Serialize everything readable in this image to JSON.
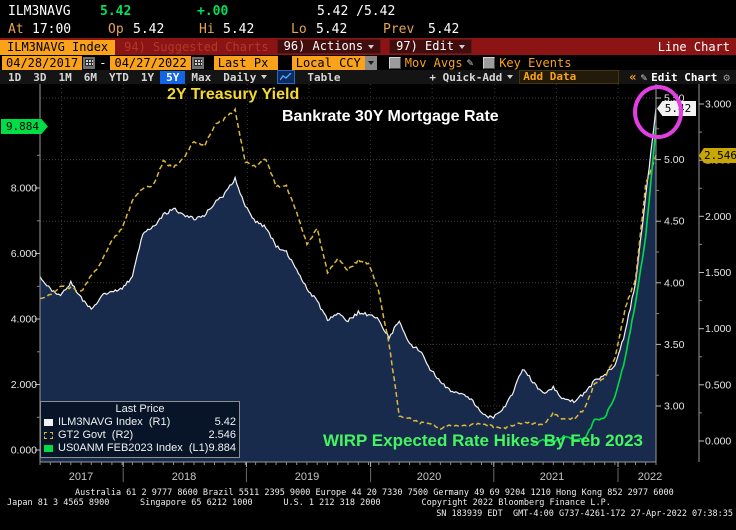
{
  "quote": {
    "ticker": "ILM3NAVG",
    "last": "5.42",
    "change": "+.00",
    "bid_ask": "5.42 /5.42",
    "at_label": "At",
    "at_time": "17:00",
    "op_label": "Op",
    "op_value": "5.42",
    "hi_label": "Hi",
    "hi_value": "5.42",
    "lo_label": "Lo",
    "lo_value": "5.42",
    "prev_label": "Prev",
    "prev_value": "5.42"
  },
  "titlebar": {
    "security": "ILM3NAVG Index",
    "suggested_charts": "94) Suggested Charts",
    "actions": "96) Actions",
    "edit": "97) Edit",
    "chart_type": "Line Chart"
  },
  "controls": {
    "date_from": "04/28/2017",
    "date_to": "04/27/2022",
    "px_type": "Last Px",
    "currency": "Local CCY",
    "mov_avgs": "Mov Avgs",
    "key_events": "Key Events"
  },
  "toolbar": {
    "periods": [
      "1D",
      "3D",
      "1M",
      "6M",
      "YTD",
      "1Y",
      "5Y",
      "Max"
    ],
    "selected_period": "5Y",
    "frequency": "Daily",
    "table_label": "Table",
    "quick_add": "+ Quick-Add",
    "add_data_placeholder": "Add Data",
    "edit_chart": "Edit Chart"
  },
  "icons": {
    "collapse": "«",
    "pencil": "✎",
    "gear": "⚙"
  },
  "annotations": {
    "yellow_label": "2Y Treasury Yield",
    "white_label": "Bankrate 30Y Mortgage Rate",
    "green_label": "WIRP Expected Rate Hikes By Feb 2023"
  },
  "legend": {
    "header": "Last Price",
    "rows": [
      {
        "swatch": "white-solid",
        "label": "ILM3NAVG Index  (R1)",
        "value": "5.42"
      },
      {
        "swatch": "yellow-dashed",
        "label": "GT2 Govt  (R2)",
        "value": "2.546"
      },
      {
        "swatch": "green-solid",
        "label": "US0ANM FEB2023 Index  (L1)",
        "value": "9.884"
      }
    ]
  },
  "badges": {
    "left_green": "9.884",
    "right_white": "5.42",
    "right_amber": "2.546"
  },
  "footer": {
    "line1": "Australia 61 2 9777 8600 Brazil 5511 2395 9000 Europe 44 20 7330 7500 Germany 49 69 9204 1210 Hong Kong 852 2977 6000",
    "line2": "Japan 81 3 4565 8900      Singapore 65 6212 1000      U.S. 1 212 318 2000        Copyright 2022 Bloomberg Finance L.P.",
    "line3": "SN 183939 EDT  GMT-4:00 G737-4261-172 27-Apr-2022 07:38:35"
  },
  "colors": {
    "amber": "#f9a21a",
    "quote_green": "#00e05c",
    "red_bar": "#8d1414",
    "blue_selected": "#1464e6",
    "series_white": "#f2f2f2",
    "series_white_fill": "#182b4d",
    "series_yellow": "#dcb73a",
    "series_green": "#00dc46",
    "magenta_circle": "#e13fe1",
    "badge_green_bg": "#00dc46",
    "badge_amber_bg": "#c9a702"
  },
  "chart_data": {
    "type": "line",
    "title": "ILM3NAVG Index Line Chart (5Y, Daily)",
    "x_start": "2017-04",
    "x_end": "2022-04",
    "x_year_labels": [
      "2017",
      "2018",
      "2019",
      "2020",
      "2021",
      "2022"
    ],
    "legend_position": "bottom-left",
    "grid": true,
    "axes": {
      "left_L1": {
        "tick_values": [
          8,
          6,
          4,
          2,
          0
        ],
        "tick_labels": [
          "8.000",
          "6.000",
          "4.000",
          "2.000",
          "0.000"
        ],
        "range": [
          0,
          11.5
        ]
      },
      "right_R1": {
        "tick_values": [
          5.5,
          5.0,
          4.5,
          4.0,
          3.5,
          3.0
        ],
        "tick_labels": [
          "5.50",
          "5.00",
          "4.50",
          "4.00",
          "3.50",
          "3.00"
        ],
        "range": [
          2.9,
          5.62
        ]
      },
      "right_R2": {
        "tick_values": [
          3.0,
          2.5,
          2.0,
          1.5,
          1.0,
          0.5,
          0.0
        ],
        "tick_labels": [
          "3.000",
          "2.500",
          "2.000",
          "1.500",
          "1.000",
          "0.500",
          "0.000"
        ],
        "range": [
          -0.35,
          3.18
        ]
      }
    },
    "series": [
      {
        "name": "ILM3NAVG Index (R1) - Bankrate 30Y Mortgage Rate",
        "axis": "R1",
        "style": "solid-area",
        "color": "#f2f2f2",
        "last": 5.42,
        "start_month_index": 0,
        "monthly_values": [
          4.05,
          3.95,
          3.9,
          4.0,
          3.88,
          3.78,
          3.9,
          3.92,
          3.95,
          4.05,
          4.4,
          4.45,
          4.55,
          4.6,
          4.55,
          4.52,
          4.55,
          4.65,
          4.72,
          4.85,
          4.62,
          4.5,
          4.45,
          4.3,
          4.25,
          4.1,
          3.95,
          3.85,
          3.7,
          3.76,
          3.69,
          3.76,
          3.74,
          3.7,
          3.55,
          3.7,
          3.5,
          3.45,
          3.3,
          3.2,
          3.12,
          3.1,
          3.05,
          2.95,
          2.9,
          2.96,
          3.1,
          3.3,
          3.2,
          3.1,
          3.15,
          3.05,
          3.04,
          3.1,
          3.2,
          3.26,
          3.32,
          3.6,
          4.0,
          4.7,
          5.42
        ]
      },
      {
        "name": "GT2 Govt (R2) - 2Y Treasury Yield",
        "axis": "R2",
        "style": "dashed",
        "color": "#dcb73a",
        "last": 2.546,
        "start_month_index": 0,
        "monthly_values": [
          1.27,
          1.3,
          1.38,
          1.36,
          1.33,
          1.47,
          1.6,
          1.78,
          1.89,
          2.14,
          2.25,
          2.27,
          2.49,
          2.43,
          2.52,
          2.67,
          2.63,
          2.81,
          2.87,
          2.95,
          2.48,
          2.45,
          2.51,
          2.27,
          2.27,
          2.03,
          1.75,
          1.89,
          1.5,
          1.63,
          1.52,
          1.61,
          1.58,
          1.33,
          0.86,
          0.23,
          0.2,
          0.16,
          0.16,
          0.11,
          0.14,
          0.13,
          0.14,
          0.16,
          0.13,
          0.11,
          0.14,
          0.16,
          0.16,
          0.14,
          0.25,
          0.19,
          0.2,
          0.28,
          0.5,
          0.57,
          0.73,
          1.18,
          1.44,
          2.28,
          2.546
        ]
      },
      {
        "name": "US0ANM FEB2023 Index (L1) - WIRP Expected Rate Hikes By Feb 2023",
        "axis": "L1",
        "style": "solid",
        "color": "#00dc46",
        "last": 9.884,
        "start_month_index": 48,
        "monthly_values": [
          0.2,
          0.3,
          0.25,
          0.4,
          0.35,
          0.3,
          0.9,
          1.0,
          1.6,
          2.8,
          4.5,
          6.5,
          9.884
        ]
      }
    ]
  }
}
